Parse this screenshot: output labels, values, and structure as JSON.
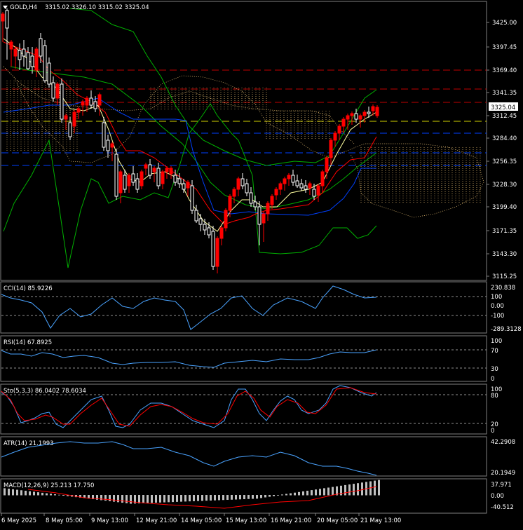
{
  "main": {
    "symbol": "GOLD,H4",
    "ohlc": "3315.02 3326.10 3315.02 3325.04",
    "price_ticks": [
      "3425.00",
      "3397.45",
      "3369.40",
      "3341.35",
      "3312.45",
      "3284.40",
      "3256.35",
      "3228.30",
      "3199.40",
      "3171.35",
      "3143.30",
      "3115.25"
    ],
    "current_price": "3325.04",
    "colors": {
      "bull": "#ff0000",
      "bear": "#ffffff",
      "ichimoku": "#ffd27f",
      "bands": "#00c000",
      "ma_fast": "#ffffa0",
      "ma_mid": "#ff0000",
      "ma_slow": "#0040ff"
    }
  },
  "cci": {
    "label": "CCI(14) 85.9226",
    "ticks": [
      "230.838",
      "100",
      "0.00",
      "-100",
      "-289.3128"
    ]
  },
  "rsi": {
    "label": "RSI(14) 67.8925",
    "ticks": [
      "100",
      "70",
      "30",
      "0"
    ]
  },
  "sto": {
    "label": "Sto(5,3,3) 86.0402 78.6034",
    "ticks": [
      "100",
      "80",
      "20",
      "0"
    ]
  },
  "atr": {
    "label": "ATR(14) 21.1993",
    "ticks": [
      "42.2908",
      "20.1949"
    ]
  },
  "macd": {
    "label": "MACD(12,26,9) 25.213 17.750",
    "ticks": [
      "37.971",
      "0.00",
      "-40.512"
    ]
  },
  "time_labels": [
    "6 May 2025",
    "8 May 05:00",
    "9 May 13:00",
    "12 May 21:00",
    "14 May 05:00",
    "15 May 13:00",
    "16 May 21:00",
    "20 May 05:00",
    "21 May 13:00"
  ]
}
